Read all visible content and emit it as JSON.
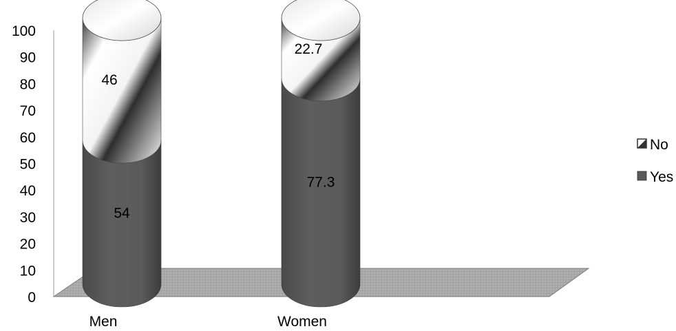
{
  "chart_data": {
    "type": "bar",
    "stacked": true,
    "style": "3d-cylinder",
    "categories": [
      "Men",
      "Women"
    ],
    "series": [
      {
        "name": "Yes",
        "values": [
          54,
          77.3
        ],
        "color": "#595959"
      },
      {
        "name": "No",
        "values": [
          46,
          22.7
        ],
        "color": "#ffffff"
      }
    ],
    "data_labels": {
      "Yes": [
        "54",
        "77.3"
      ],
      "No": [
        "46",
        "22.7"
      ]
    },
    "y_ticks": [
      "0",
      "10",
      "20",
      "30",
      "40",
      "50",
      "60",
      "70",
      "80",
      "90",
      "100"
    ],
    "ylim": [
      0,
      100
    ],
    "grid": false,
    "legend": {
      "placement": "right",
      "items": [
        "No",
        "Yes"
      ]
    },
    "title": "",
    "xlabel": "",
    "ylabel": ""
  }
}
